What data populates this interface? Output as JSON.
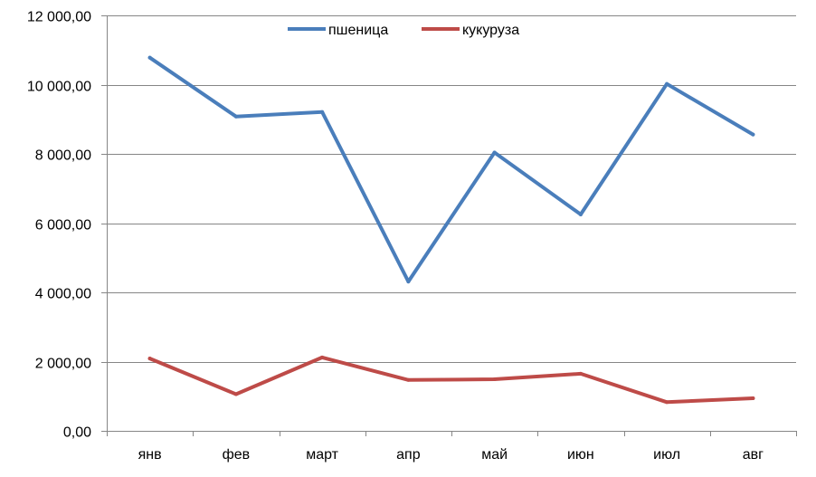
{
  "chart_data": {
    "type": "line",
    "title": "",
    "xlabel": "",
    "ylabel": "",
    "categories": [
      "янв",
      "фев",
      "март",
      "апр",
      "май",
      "июн",
      "июл",
      "авг"
    ],
    "series": [
      {
        "name": "пшеница",
        "color": "#4a7ebb",
        "values": [
          10780,
          9080,
          9210,
          4310,
          8040,
          6250,
          10020,
          8560
        ]
      },
      {
        "name": "кукуруза",
        "color": "#be4b48",
        "values": [
          2090,
          1060,
          2120,
          1470,
          1490,
          1650,
          830,
          940
        ]
      }
    ],
    "ylim": [
      0,
      12000
    ],
    "yticks": [
      0,
      2000,
      4000,
      6000,
      8000,
      10000,
      12000
    ],
    "ytick_labels": [
      "0,00",
      "2 000,00",
      "4 000,00",
      "6 000,00",
      "8 000,00",
      "10 000,00",
      "12 000,00"
    ],
    "grid": true,
    "legend_position": "top"
  }
}
